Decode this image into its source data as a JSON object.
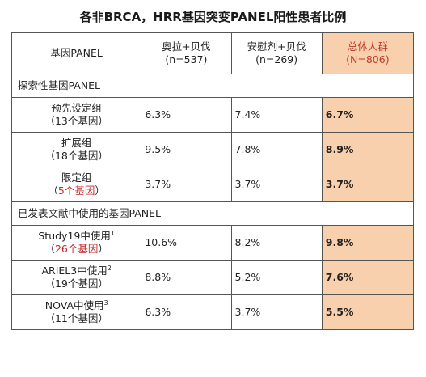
{
  "title": "各非BRCA，HRR基因突变PANEL阳性患者比例",
  "header": {
    "col1": "基因PANEL",
    "col2_name": "奥拉+贝伐",
    "col2_n": "(n=537)",
    "col3_name": "安慰剂+贝伐",
    "col3_n": "(n=269)",
    "col4_name": "总体人群",
    "col4_n": "(N=806)"
  },
  "sections": [
    {
      "label": "探索性基因PANEL",
      "rows": [
        {
          "name": "预先设定组",
          "sup": "",
          "genes": "（13个基因）",
          "genes_red": false,
          "v1": "6.3%",
          "v2": "7.4%",
          "total": "6.7%"
        },
        {
          "name": "扩展组",
          "sup": "",
          "genes": "（18个基因）",
          "genes_red": false,
          "v1": "9.5%",
          "v2": "7.8%",
          "total": "8.9%"
        },
        {
          "name": "限定组",
          "sup": "",
          "genes_pre": "（",
          "genes": "5个基因",
          "genes_post": "）",
          "genes_red": true,
          "v1": "3.7%",
          "v2": "3.7%",
          "total": "3.7%"
        }
      ]
    },
    {
      "label": "已发表文献中使用的基因PANEL",
      "rows": [
        {
          "name": "Study19中使用",
          "sup": "1",
          "genes_pre": "（",
          "genes": "26个基因",
          "genes_post": "）",
          "genes_red": true,
          "v1": "10.6%",
          "v2": "8.2%",
          "total": "9.8%"
        },
        {
          "name": "ARIEL3中使用",
          "sup": "2",
          "genes": "（19个基因）",
          "genes_red": false,
          "v1": "8.8%",
          "v2": "5.2%",
          "total": "7.6%"
        },
        {
          "name": "NOVA中使用",
          "sup": "3",
          "genes": "（11个基因）",
          "genes_red": false,
          "v1": "6.3%",
          "v2": "3.7%",
          "total": "5.5%"
        }
      ]
    }
  ]
}
